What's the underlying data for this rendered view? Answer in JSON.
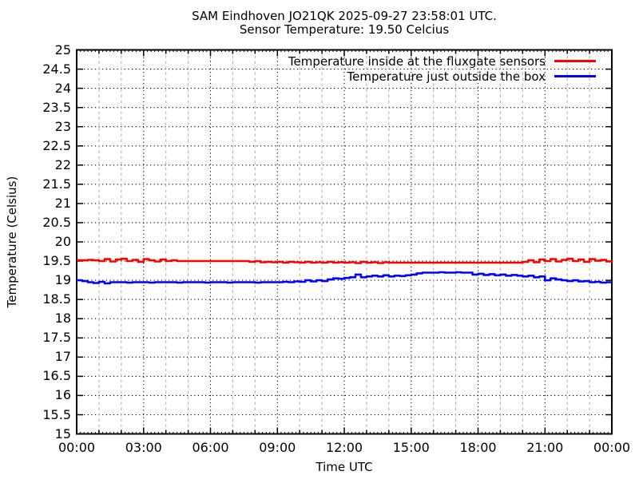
{
  "chart_data": {
    "type": "line",
    "title": "SAM Eindhoven JO21QK 2025-09-27 23:58:01 UTC.",
    "subtitle": "Sensor Temperature: 19.50 Celcius",
    "xlabel": "Time UTC",
    "ylabel": "Temperature (Celsius)",
    "ylim": [
      15,
      25
    ],
    "xlim_hours": [
      0,
      24
    ],
    "grid": "hourly gray dashed verticals, 3-hour black dotted verticals, 0.5-degree black dotted horizontals",
    "legend_position": "top-right-inside",
    "x_tick_hours": [
      0,
      3,
      6,
      9,
      12,
      15,
      18,
      21,
      24
    ],
    "x_tick_labels": [
      "00:00",
      "03:00",
      "06:00",
      "09:00",
      "12:00",
      "15:00",
      "18:00",
      "21:00",
      "00:00"
    ],
    "y_tick_labels": [
      "15",
      "15.5",
      "16",
      "16.5",
      "17",
      "17.5",
      "18",
      "18.5",
      "19",
      "19.5",
      "20",
      "20.5",
      "21",
      "21.5",
      "22",
      "22.5",
      "23",
      "23.5",
      "24",
      "24.5",
      "25"
    ],
    "x_step_hours": 0.25,
    "series": [
      {
        "name": "Temperature inside at the fluxgate sensors",
        "color": "#ff0000",
        "values": [
          19.52,
          19.52,
          19.53,
          19.52,
          19.5,
          19.55,
          19.49,
          19.54,
          19.56,
          19.5,
          19.53,
          19.48,
          19.55,
          19.52,
          19.49,
          19.54,
          19.5,
          19.52,
          19.5,
          19.5,
          19.5,
          19.5,
          19.5,
          19.5,
          19.5,
          19.5,
          19.5,
          19.5,
          19.5,
          19.5,
          19.5,
          19.48,
          19.5,
          19.47,
          19.48,
          19.47,
          19.48,
          19.46,
          19.48,
          19.47,
          19.46,
          19.48,
          19.46,
          19.47,
          19.46,
          19.48,
          19.46,
          19.47,
          19.46,
          19.47,
          19.45,
          19.48,
          19.46,
          19.47,
          19.45,
          19.47,
          19.46,
          19.46,
          19.46,
          19.46,
          19.46,
          19.46,
          19.46,
          19.46,
          19.46,
          19.46,
          19.46,
          19.46,
          19.46,
          19.46,
          19.46,
          19.46,
          19.46,
          19.46,
          19.46,
          19.46,
          19.46,
          19.46,
          19.46,
          19.46,
          19.48,
          19.52,
          19.47,
          19.54,
          19.5,
          19.55,
          19.49,
          19.53,
          19.56,
          19.5,
          19.54,
          19.48,
          19.55,
          19.51,
          19.53,
          19.49,
          19.52
        ]
      },
      {
        "name": "Temperature just outside the box",
        "color": "#0000ff",
        "values": [
          19.0,
          18.98,
          18.95,
          18.93,
          18.96,
          18.92,
          18.95,
          18.95,
          18.95,
          18.94,
          18.95,
          18.95,
          18.95,
          18.94,
          18.95,
          18.95,
          18.95,
          18.95,
          18.94,
          18.95,
          18.95,
          18.95,
          18.95,
          18.94,
          18.95,
          18.95,
          18.95,
          18.94,
          18.95,
          18.95,
          18.95,
          18.95,
          18.94,
          18.95,
          18.95,
          18.95,
          18.95,
          18.96,
          18.95,
          18.97,
          18.96,
          19.0,
          18.97,
          19.0,
          18.98,
          19.02,
          19.05,
          19.04,
          19.06,
          19.08,
          19.15,
          19.08,
          19.1,
          19.12,
          19.1,
          19.13,
          19.1,
          19.12,
          19.11,
          19.13,
          19.15,
          19.18,
          19.2,
          19.2,
          19.2,
          19.21,
          19.2,
          19.2,
          19.21,
          19.2,
          19.2,
          19.15,
          19.17,
          19.14,
          19.16,
          19.13,
          19.15,
          19.12,
          19.14,
          19.12,
          19.1,
          19.12,
          19.08,
          19.1,
          19.0,
          19.05,
          19.02,
          19.0,
          18.98,
          19.0,
          18.97,
          18.98,
          18.95,
          18.96,
          18.94,
          18.95,
          18.95
        ]
      }
    ]
  }
}
